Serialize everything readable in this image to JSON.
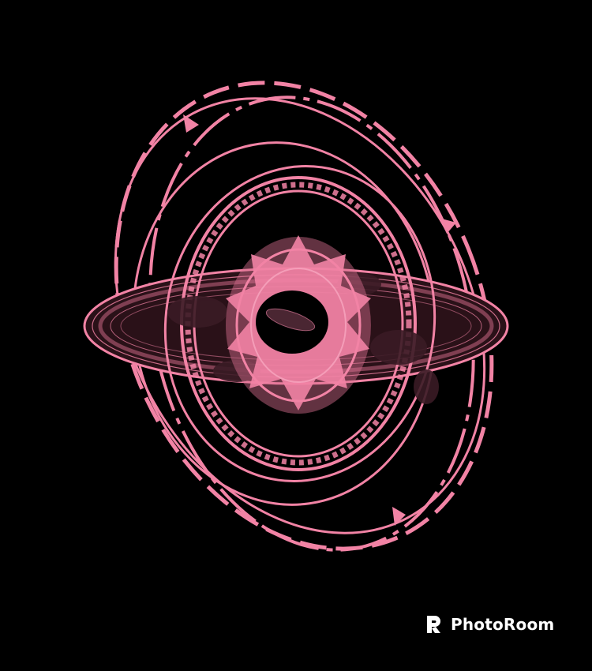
{
  "image": {
    "background_color": "#000000",
    "line_color": "#f283a5",
    "dark_shade_color": "#5a2a38"
  },
  "watermark": {
    "text": "PhotoRoom",
    "icon": "photoroom-logo-icon",
    "color": "#ffffff"
  }
}
